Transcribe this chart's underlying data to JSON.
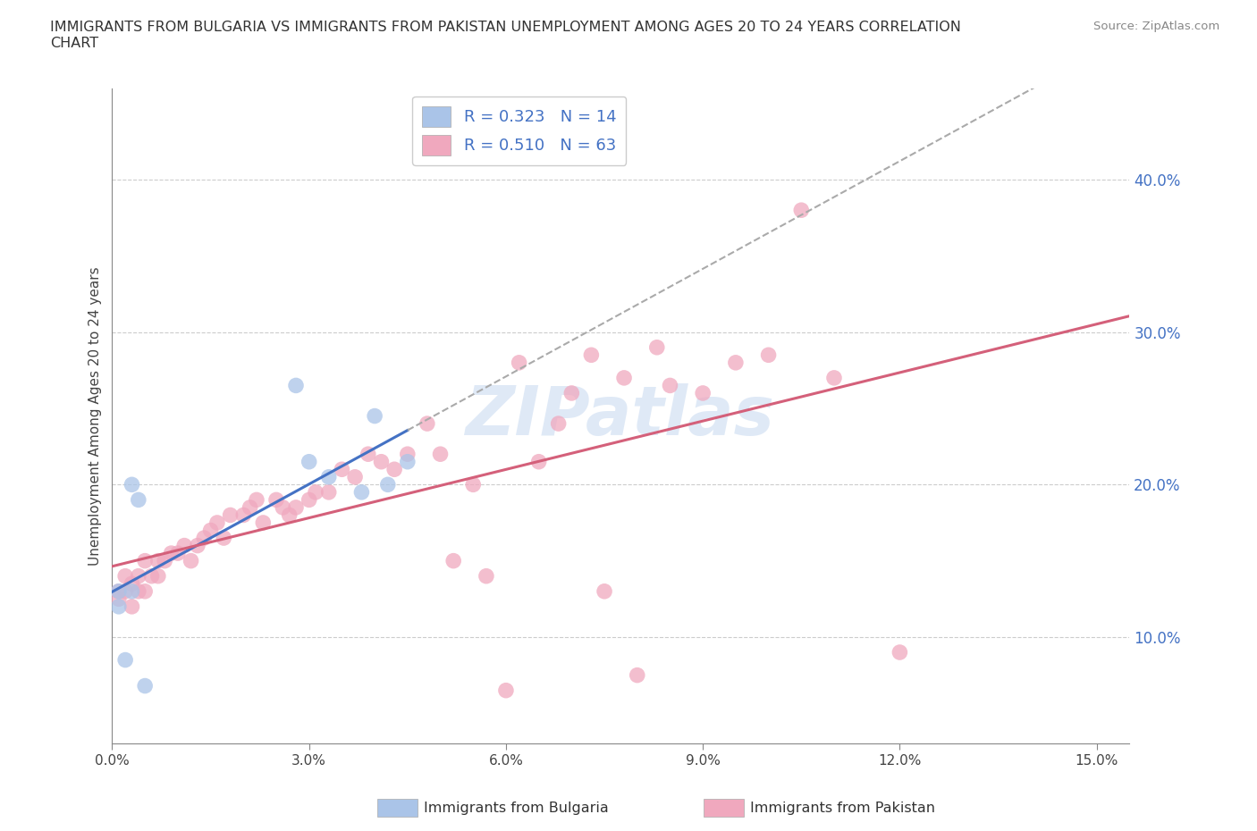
{
  "title": "IMMIGRANTS FROM BULGARIA VS IMMIGRANTS FROM PAKISTAN UNEMPLOYMENT AMONG AGES 20 TO 24 YEARS CORRELATION\nCHART",
  "source": "Source: ZipAtlas.com",
  "ylabel": "Unemployment Among Ages 20 to 24 years",
  "xlim": [
    0.0,
    0.155
  ],
  "ylim": [
    0.03,
    0.46
  ],
  "xticks": [
    0.0,
    0.03,
    0.06,
    0.09,
    0.12,
    0.15
  ],
  "xticklabels": [
    "0.0%",
    "3.0%",
    "6.0%",
    "9.0%",
    "12.0%",
    "15.0%"
  ],
  "yticks_right": [
    0.1,
    0.2,
    0.3,
    0.4
  ],
  "yticklabels_right": [
    "10.0%",
    "20.0%",
    "30.0%",
    "40.0%"
  ],
  "bulgaria_color": "#aac4e8",
  "pakistan_color": "#f0a8be",
  "bulgaria_R": 0.323,
  "bulgaria_N": 14,
  "pakistan_R": 0.51,
  "pakistan_N": 63,
  "bulgaria_line_color": "#4472c4",
  "pakistan_line_color": "#d4607a",
  "bulgaria_dash_color": "#aaaaaa",
  "watermark": "ZIPatlas",
  "watermark_color": "#c5d8f0",
  "grid_color": "#cccccc",
  "background_color": "#ffffff",
  "legend_label_bulgaria": "R = 0.323   N = 14",
  "legend_label_pakistan": "R = 0.510   N = 63",
  "bottom_label_bulgaria": "Immigrants from Bulgaria",
  "bottom_label_pakistan": "Immigrants from Pakistan",
  "bulgaria_x": [
    0.001,
    0.001,
    0.002,
    0.003,
    0.003,
    0.004,
    0.005,
    0.028,
    0.03,
    0.033,
    0.038,
    0.04,
    0.042,
    0.045
  ],
  "bulgaria_y": [
    0.13,
    0.12,
    0.085,
    0.13,
    0.2,
    0.19,
    0.068,
    0.265,
    0.215,
    0.205,
    0.195,
    0.245,
    0.2,
    0.215
  ],
  "pakistan_x": [
    0.001,
    0.001,
    0.002,
    0.002,
    0.003,
    0.003,
    0.004,
    0.004,
    0.005,
    0.005,
    0.006,
    0.007,
    0.007,
    0.008,
    0.009,
    0.01,
    0.011,
    0.012,
    0.013,
    0.014,
    0.015,
    0.016,
    0.017,
    0.018,
    0.02,
    0.021,
    0.022,
    0.023,
    0.025,
    0.026,
    0.027,
    0.028,
    0.03,
    0.031,
    0.033,
    0.035,
    0.037,
    0.039,
    0.041,
    0.043,
    0.045,
    0.048,
    0.05,
    0.052,
    0.055,
    0.057,
    0.06,
    0.062,
    0.065,
    0.068,
    0.07,
    0.073,
    0.075,
    0.078,
    0.08,
    0.083,
    0.085,
    0.09,
    0.095,
    0.1,
    0.105,
    0.11,
    0.12
  ],
  "pakistan_y": [
    0.125,
    0.13,
    0.13,
    0.14,
    0.12,
    0.135,
    0.13,
    0.14,
    0.13,
    0.15,
    0.14,
    0.14,
    0.15,
    0.15,
    0.155,
    0.155,
    0.16,
    0.15,
    0.16,
    0.165,
    0.17,
    0.175,
    0.165,
    0.18,
    0.18,
    0.185,
    0.19,
    0.175,
    0.19,
    0.185,
    0.18,
    0.185,
    0.19,
    0.195,
    0.195,
    0.21,
    0.205,
    0.22,
    0.215,
    0.21,
    0.22,
    0.24,
    0.22,
    0.15,
    0.2,
    0.14,
    0.065,
    0.28,
    0.215,
    0.24,
    0.26,
    0.285,
    0.13,
    0.27,
    0.075,
    0.29,
    0.265,
    0.26,
    0.28,
    0.285,
    0.38,
    0.27,
    0.09
  ]
}
